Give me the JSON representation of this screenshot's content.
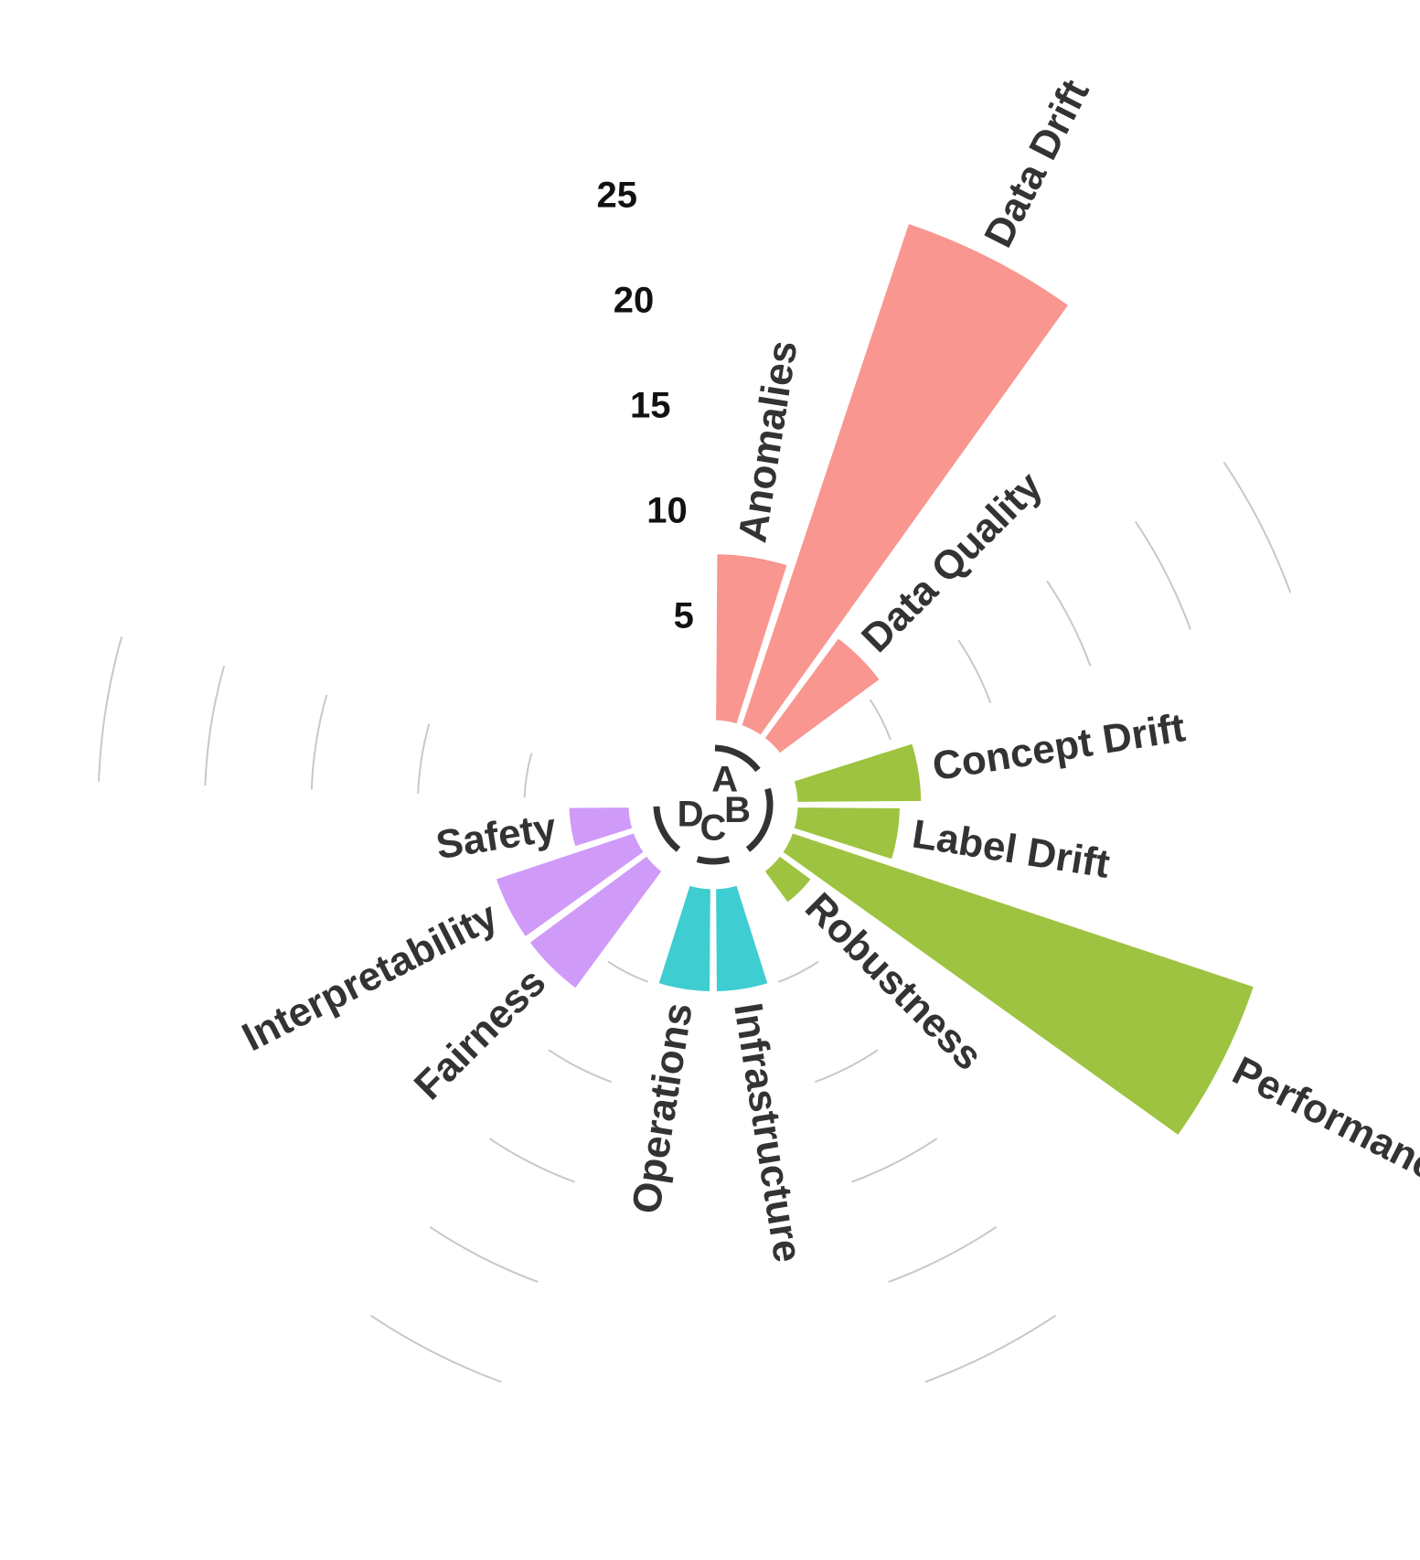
{
  "chart_data": {
    "type": "circular_barplot",
    "groups": [
      {
        "name": "A",
        "color": "#F8968F",
        "bars": [
          {
            "label": "Anomalies",
            "value": 8
          },
          {
            "label": "Data Drift",
            "value": 25
          },
          {
            "label": "Data Quality",
            "value": 6
          }
        ]
      },
      {
        "name": "B",
        "color": "#9DC340",
        "bars": [
          {
            "label": "Concept Drift",
            "value": 6
          },
          {
            "label": "Label Drift",
            "value": 5
          },
          {
            "label": "Performance",
            "value": 23
          },
          {
            "label": "Robustness",
            "value": 2
          }
        ]
      },
      {
        "name": "C",
        "color": "#3ECDD0",
        "bars": [
          {
            "label": "Infrastructure",
            "value": 5
          },
          {
            "label": "Operations",
            "value": 5
          }
        ]
      },
      {
        "name": "D",
        "color": "#D09AF8",
        "bars": [
          {
            "label": "Fairness",
            "value": 7
          },
          {
            "label": "Interpretability",
            "value": 7
          },
          {
            "label": "Safety",
            "value": 3
          }
        ]
      }
    ],
    "radial_ticks": [
      5,
      10,
      15,
      20,
      25
    ],
    "radial_range": [
      0,
      25
    ],
    "grid": true,
    "legend": "none"
  }
}
